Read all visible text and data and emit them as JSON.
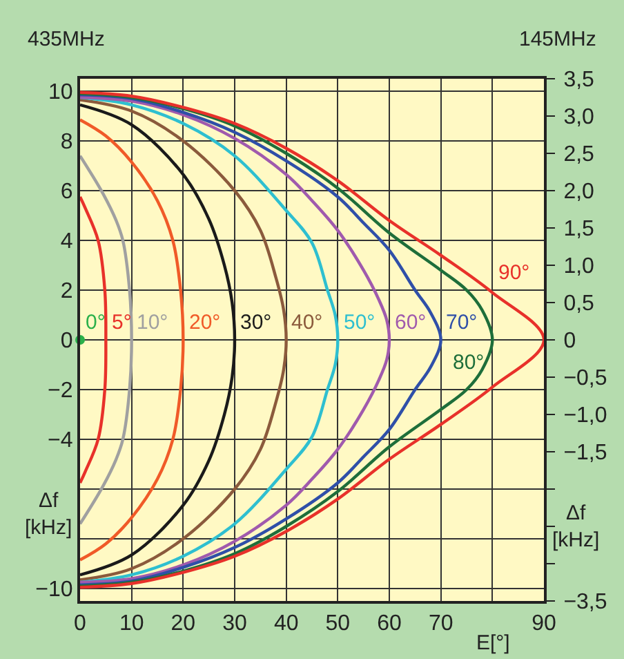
{
  "chart_data": {
    "type": "line",
    "xlabel": "E[°]",
    "ylabel": "Δf [kHz]",
    "y2label": "Δf [kHz]",
    "annotations": [
      "435MHz",
      "145MHz"
    ],
    "xlim": [
      0,
      90
    ],
    "xticks": [
      0,
      10,
      20,
      30,
      40,
      50,
      60,
      70,
      {
        "value": 80,
        "label": null
      },
      90
    ],
    "ylim": [
      -10.5,
      10.5
    ],
    "yticks": [
      {
        "value": -10,
        "label": "−10"
      },
      {
        "value": -8,
        "label": null
      },
      {
        "value": -6,
        "label": null
      },
      {
        "value": -4,
        "label": "−4"
      },
      {
        "value": -2,
        "label": "−2"
      },
      0,
      2,
      4,
      6,
      8,
      10
    ],
    "y2lim": [
      -3.5,
      3.5
    ],
    "y2ticks": [
      {
        "value": -3.5,
        "label": "−3,5"
      },
      {
        "value": -3.0,
        "label": null
      },
      {
        "value": -2.5,
        "label": null
      },
      {
        "value": -2.0,
        "label": null
      },
      {
        "value": -1.5,
        "label": "−1,5"
      },
      {
        "value": -1.0,
        "label": "−1,0"
      },
      {
        "value": -0.5,
        "label": "−0,5"
      },
      {
        "value": 0,
        "label": "0"
      },
      {
        "value": 0.5,
        "label": "0,5"
      },
      {
        "value": 1.0,
        "label": "1,0"
      },
      {
        "value": 1.5,
        "label": "1,5"
      },
      {
        "value": 2.0,
        "label": "2,0"
      },
      {
        "value": 2.5,
        "label": "2,5"
      },
      {
        "value": 3.0,
        "label": "3,0"
      },
      {
        "value": 3.5,
        "label": "3,5"
      }
    ],
    "grid": true,
    "legend": false,
    "series": [
      {
        "name": "0°",
        "type": "scatter",
        "marker": "circle",
        "color": "#2ab04a",
        "x": [
          0
        ],
        "values": [
          0
        ]
      },
      {
        "name": "5°",
        "color": "#e8312a",
        "x": [
          0,
          1,
          3.5,
          4.8,
          5,
          4.8,
          3.5,
          1,
          0
        ],
        "values": [
          5.75,
          5.3,
          4.0,
          2.0,
          0,
          -2.0,
          -4.0,
          -5.3,
          -5.75
        ]
      },
      {
        "name": "10°",
        "color": "#a0a0a0",
        "x": [
          0,
          4.4,
          7,
          8.3,
          9.6,
          10,
          9.6,
          8.3,
          7,
          4.4,
          0
        ],
        "values": [
          7.4,
          5.9,
          4.8,
          4.0,
          2.0,
          0,
          -2.0,
          -4.0,
          -4.8,
          -5.9,
          -7.4
        ]
      },
      {
        "name": "20°",
        "color": "#f05a28",
        "x": [
          0,
          5,
          10,
          15,
          18,
          19.5,
          20,
          19.5,
          18,
          15,
          10,
          5,
          0
        ],
        "values": [
          8.85,
          8.2,
          7.15,
          5.6,
          4.0,
          2.0,
          0,
          -2.0,
          -4.0,
          -5.6,
          -7.15,
          -8.2,
          -8.85
        ]
      },
      {
        "name": "30°",
        "color": "#1a1a1a",
        "x": [
          0,
          10,
          20,
          25,
          28,
          29.5,
          30,
          29.5,
          28,
          25,
          20,
          10,
          0
        ],
        "values": [
          9.45,
          8.65,
          6.65,
          4.85,
          3.0,
          1.5,
          0,
          -1.5,
          -3.0,
          -4.85,
          -6.65,
          -8.65,
          -9.45
        ]
      },
      {
        "name": "40°",
        "color": "#8b5a3c",
        "x": [
          0,
          10,
          20,
          30,
          35,
          38,
          39.5,
          40,
          39.5,
          38,
          35,
          30,
          20,
          10,
          0
        ],
        "values": [
          9.65,
          9.2,
          8.0,
          6.0,
          4.4,
          2.5,
          1.2,
          0,
          -1.2,
          -2.5,
          -4.4,
          -6.0,
          -8.0,
          -9.2,
          -9.65
        ]
      },
      {
        "name": "50°",
        "color": "#2ebfd0",
        "x": [
          0,
          10,
          20,
          30,
          40,
          45,
          48,
          49.5,
          50,
          49.5,
          48,
          45,
          40,
          30,
          20,
          10,
          0
        ],
        "values": [
          9.75,
          9.45,
          8.7,
          7.4,
          5.2,
          3.9,
          2.0,
          1.0,
          0,
          -1.0,
          -2.0,
          -3.9,
          -5.2,
          -7.4,
          -8.7,
          -9.45,
          -9.75
        ]
      },
      {
        "name": "60°",
        "color": "#a05aad",
        "x": [
          0,
          10,
          20,
          30,
          40,
          45,
          50,
          55,
          58,
          59.5,
          60,
          59.5,
          58,
          55,
          50,
          45,
          40,
          30,
          20,
          10,
          0
        ],
        "values": [
          9.75,
          9.6,
          9.05,
          8.1,
          6.65,
          5.6,
          4.4,
          2.8,
          1.6,
          0.8,
          0,
          -0.8,
          -1.6,
          -2.8,
          -4.4,
          -5.6,
          -6.65,
          -8.1,
          -9.05,
          -9.6,
          -9.75
        ]
      },
      {
        "name": "70°",
        "color": "#2f4fa8",
        "x": [
          0,
          10,
          20,
          30,
          40,
          50,
          55,
          60,
          65,
          68,
          70,
          68,
          65,
          60,
          55,
          50,
          40,
          30,
          20,
          10,
          0
        ],
        "values": [
          9.85,
          9.7,
          9.15,
          8.35,
          7.2,
          5.75,
          4.7,
          3.6,
          2.0,
          1.1,
          0,
          -1.1,
          -2.0,
          -3.6,
          -4.7,
          -5.75,
          -7.2,
          -8.35,
          -9.15,
          -9.7,
          -9.85
        ]
      },
      {
        "name": "80°",
        "color": "#1e6e3a",
        "x": [
          0,
          10,
          20,
          30,
          40,
          50,
          60,
          70,
          75,
          78,
          80,
          78,
          75,
          70,
          60,
          50,
          40,
          30,
          20,
          10,
          0
        ],
        "values": [
          9.9,
          9.75,
          9.3,
          8.6,
          7.5,
          6.1,
          4.3,
          2.8,
          2.0,
          1.2,
          0,
          -1.2,
          -2.0,
          -2.8,
          -4.3,
          -6.1,
          -7.5,
          -8.6,
          -9.3,
          -9.75,
          -9.9
        ]
      },
      {
        "name": "90°",
        "color": "#e8312a",
        "x": [
          0,
          10,
          20,
          30,
          40,
          50,
          60,
          70,
          80,
          90,
          80,
          70,
          60,
          50,
          40,
          30,
          20,
          10,
          0
        ],
        "values": [
          9.95,
          9.8,
          9.35,
          8.7,
          7.7,
          6.4,
          4.8,
          3.4,
          1.9,
          0,
          -1.9,
          -3.4,
          -4.8,
          -6.4,
          -7.7,
          -8.7,
          -9.35,
          -9.8,
          -9.95
        ]
      }
    ]
  }
}
